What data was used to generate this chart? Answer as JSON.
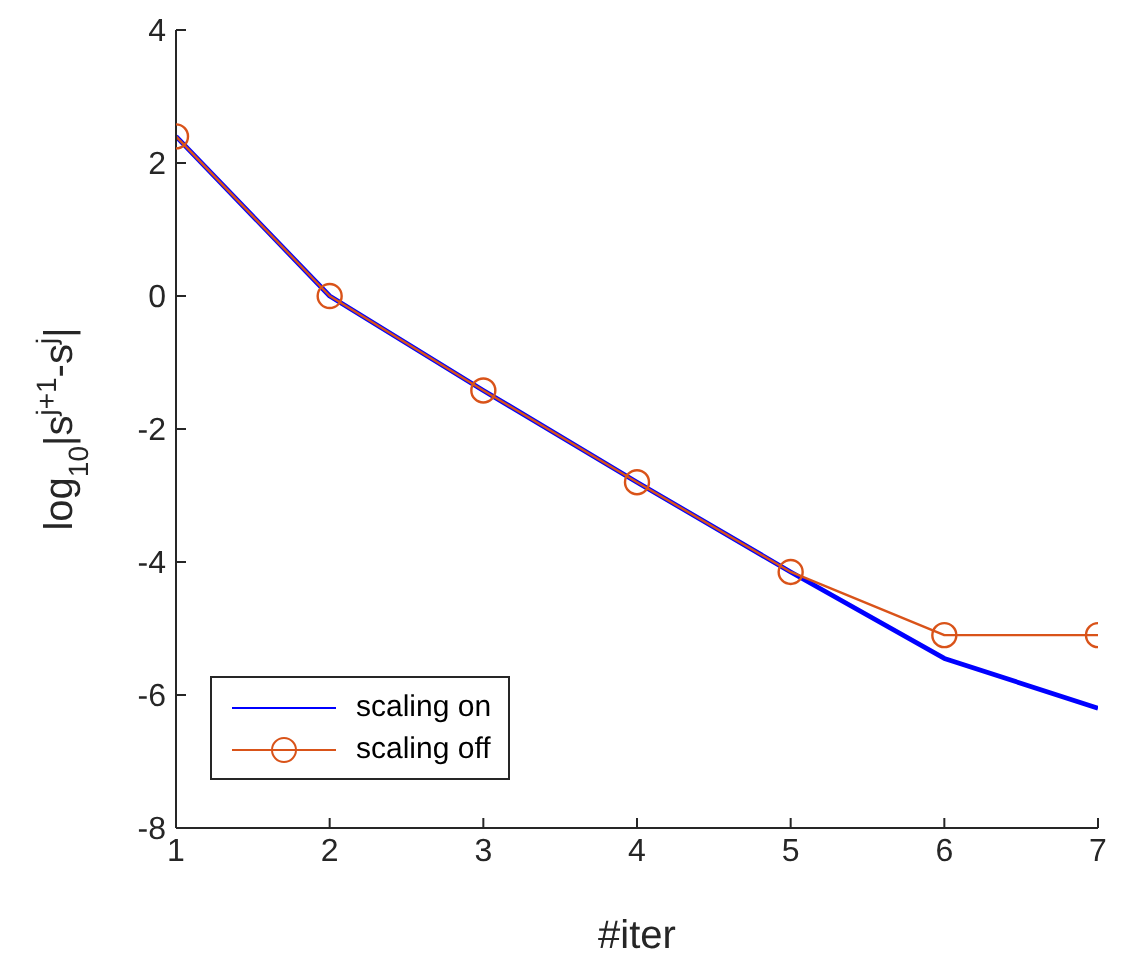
{
  "chart_data": {
    "type": "line",
    "xlabel": "#iter",
    "ylabel": "log$_{10}$|s$^{j+1}$-s$^{j}$|",
    "x": [
      1,
      2,
      3,
      4,
      5,
      6,
      7
    ],
    "series": [
      {
        "name": "scaling on",
        "color": "#0000ff",
        "values": [
          2.4,
          0,
          -1.42,
          -2.8,
          -4.15,
          -5.45,
          -6.2
        ],
        "marker": "none"
      },
      {
        "name": "scaling off",
        "color": "#d95319",
        "values": [
          2.4,
          0,
          -1.42,
          -2.8,
          -4.15,
          -5.1,
          -5.1
        ],
        "marker": "circle"
      }
    ],
    "xlim": [
      1,
      7
    ],
    "xticks": [
      1,
      2,
      3,
      4,
      5,
      6,
      7
    ],
    "ylim": [
      -8,
      4
    ],
    "yticks": [
      -8,
      -6,
      -4,
      -2,
      0,
      2,
      4
    ],
    "grid": false,
    "legend": "bottom left",
    "line_style": "solid"
  }
}
